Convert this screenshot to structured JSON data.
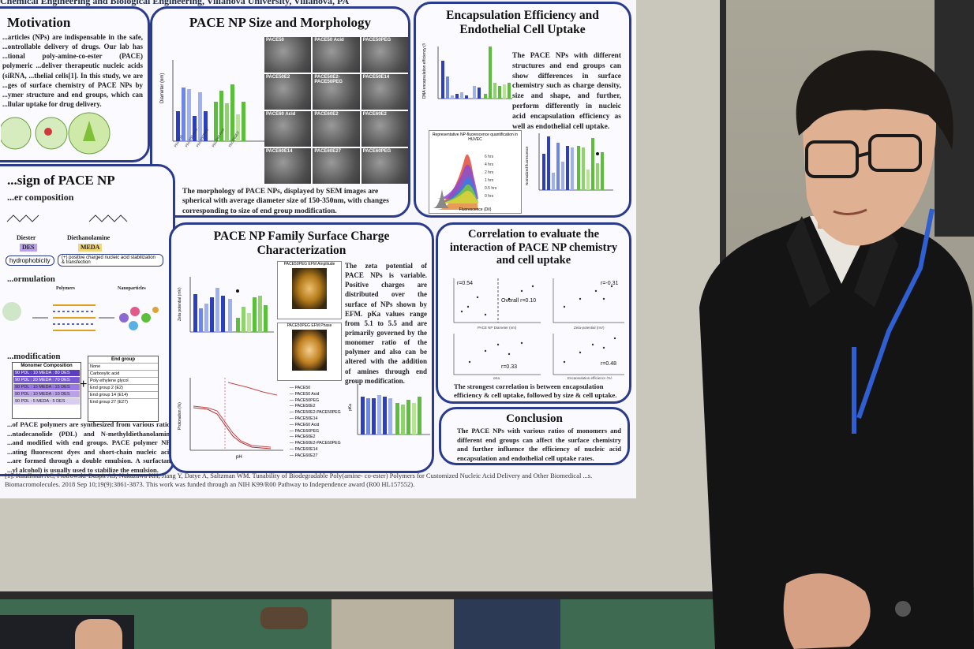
{
  "poster": {
    "header_affiliation": "Chemical Engineering and Biological Engineering, Villanova University, Villanova, PA",
    "motivation": {
      "title": "Motivation",
      "text": "...articles (NPs) are indispensable in the safe, ...ontrollable delivery of drugs. Our lab has ...tional poly-amine-co-ester (PACE) polymeric ...deliver therapeutic nucleic acids (siRNA, ...thelial cells[1]. In this study, we are ...ges of surface chemistry of PACE NPs by ...ymer structure and end groups, which can ...llular uptake for drug delivery."
    },
    "size_morphology": {
      "title": "PACE NP Size and Morphology",
      "caption": "The morphology of PACE NPs, displayed by SEM images are spherical with average diameter size of 150-350nm, with changes corresponding to size of end group modification.",
      "ylabel": "Diameter (nm)",
      "sem_labels": [
        "PACE50",
        "PACE50 Acid",
        "PACE50PEG",
        "PACE50E2",
        "PACE50E2-PACE50PEG",
        "PACE50E14",
        "PACE60 Acid",
        "PACE60E2",
        "PACE60E2",
        "PACE60E14",
        "PACE60E27",
        "PACE60PEG"
      ]
    },
    "encapsulation": {
      "title": "Encapsulation Efficiency and Endothelial Cell Uptake",
      "text": "The PACE NPs with different structures and end groups can show differences in surface chemistry such as charge density, size and shape, and further, perform differently in nucleic acid encapsulation efficiency as well as endothelial cell uptake.",
      "ylabel": "DNA encapsulation efficiency (%)",
      "hist_title": "Representative NP-fluorescence quantification in HUVEC",
      "hist_xlabel": "Fluorescence (DiI)",
      "hist_legend": [
        "6 hrs",
        "4 hrs",
        "2 hrs",
        "1 hrs",
        "0.5 hrs",
        "0 hrs"
      ],
      "uptake_ylabel": "Normalized fluorescence HUVEC cell uptake rate"
    },
    "design": {
      "title": "...sign of PACE NP",
      "subtitle": "...er composition",
      "diester": "Diester",
      "diester_code": "DES",
      "diethanolamine": "Diethanolamine",
      "diethanolamine_code": "MEDA",
      "hydrophobicity": "hydrophobicity",
      "positive": "(+) positive charged nucleic acid stabilization & transfection",
      "formulation": "...ormulation",
      "polymers": "Polymers",
      "nanoparticles": "Nanoparticles",
      "modification": "...modification",
      "monomer_header": "Monomer Composition",
      "monomer_rows": [
        "90 PDL : 10 MEDA : 80 DES",
        "90 PDL : 20 MEDA : 70 DES",
        "90 PDL : 15 MEDA : 15 DES",
        "90 PDL : 10 MEDA : 10 DES",
        "90 PDL : 5 MEDA : 5 DES"
      ],
      "end_header": "End group",
      "end_rows": [
        "None",
        "Carboxylic acid",
        "Poly ethylene glycol",
        "End group 2 (E2)",
        "End group 14 (E14)",
        "End group 27 (E27)"
      ],
      "text": "...of PACE polymers are synthesized from various ratios ...ntadecanolide (PDL) and N-methyldiethanolamine ...and modified with end groups. PACE polymer NPs ...ating fluorescent dyes and short-chain nucleic acid ...are formed through a double emulsion. A surfactant ...yl alcohol) is usually used to stabilize the emulsion."
    },
    "surface_charge": {
      "title": "PACE NP Family Surface Charge Characterization",
      "text": "The zeta potential of PACE NPs is variable. Positive charges are distributed over the surface of NPs shown by EFM. pKa values range from 5.1 to 5.5 and are primarily governed by the monomer ratio of the polymer and also can be altered with the addition of amines through end group modification.",
      "ylabel": "Zeta potential (mV)",
      "efm1_title": "PACE50PEG EFM Amplitude",
      "efm2_title": "PACE50PEG EFM Phase",
      "titration_xlabel": "pH",
      "titration_legend": [
        "PACE50",
        "PACE50 Acid",
        "PACE50PEG",
        "PACE50E2",
        "PACE50E2-PACE50PEG",
        "PACE50E14",
        "PACE60 Acid",
        "PACE60PEG",
        "PACE60E2",
        "PACE60E2-PACE60PEG",
        "PACE60E14",
        "PACE60E27"
      ],
      "pka_ylabel": "pKa"
    },
    "correlation": {
      "title": "Correlation to evaluate the interaction of PACE NP chemistry and cell uptake",
      "r_values": [
        "r=0.54",
        "Overall r=0.10",
        "r=-0.31",
        "r=0.33",
        "r=0.48"
      ],
      "xlabels": [
        "PACE NP Diameter (nm)",
        "Zeta-potential (mV)",
        "pKa",
        "Encapsulation efficiency (%)"
      ],
      "caption": "The strongest correlation is between encapsulation efficiency & cell uptake, followed by size & cell uptake."
    },
    "conclusion": {
      "title": "Conclusion",
      "text": "The PACE NPs with various ratios of monomers and different end groups can affect the surface chemistry and further influence the efficiency of nucleic acid encapsulation and endothelial cell uptake rates."
    },
    "references": "[1]. Kauffman AC, Piotrowski-Daspit AS, Nakazawa KH, Jiang Y, Datye A, Saltzman WM. Tunability of Biodegradable Poly(amine- co-ester) Polymers for Customized Nucleic Acid Delivery and Other Biomedical ...s. Biomacromolecules. 2018 Sep 10;19(9):3861-3873. This work was funded through an NIH K99/R00 Pathway to Independence award (R00 HL157552)."
  },
  "colors": {
    "panel_border": "#2a3a8c",
    "bar_blue": "#2b3fbf",
    "bar_light_blue": "#9fb0f0",
    "bar_green": "#5cbf3a",
    "bar_light_green": "#b5e58f",
    "shirt": "#141414",
    "lanyard": "#2f5fd0"
  }
}
